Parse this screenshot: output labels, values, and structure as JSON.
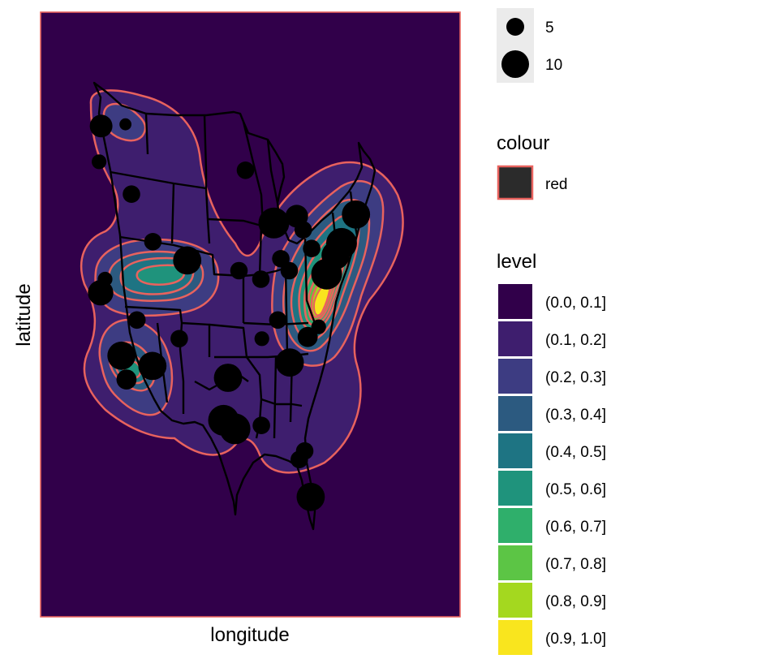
{
  "chart_data": {
    "type": "heatmap",
    "description_kind": "map_density_contour",
    "xlabel": "longitude",
    "ylabel": "latitude",
    "x_ticks": [],
    "y_ticks": [],
    "grid": false,
    "legend_placement": "right",
    "legends": {
      "size": {
        "title": "",
        "entries": [
          {
            "label": "5",
            "value": 5
          },
          {
            "label": "10",
            "value": 10
          }
        ]
      },
      "colour": {
        "title": "colour",
        "entries": [
          {
            "label": "red",
            "color": "#E8625E"
          }
        ]
      },
      "level": {
        "title": "level",
        "entries": [
          {
            "label": "(0.0, 0.1]",
            "color": "#31004A"
          },
          {
            "label": "(0.1, 0.2]",
            "color": "#3E1E6E"
          },
          {
            "label": "(0.2, 0.3]",
            "color": "#3D3C82"
          },
          {
            "label": "(0.3, 0.4]",
            "color": "#2C5A80"
          },
          {
            "label": "(0.4, 0.5]",
            "color": "#1E7483"
          },
          {
            "label": "(0.5, 0.6]",
            "color": "#1F937C"
          },
          {
            "label": "(0.6, 0.7]",
            "color": "#2FAF6B"
          },
          {
            "label": "(0.7, 0.8]",
            "color": "#5CC545"
          },
          {
            "label": "(0.8, 0.9]",
            "color": "#A4D81F"
          },
          {
            "label": "(0.9, 1.0]",
            "color": "#F9E51E"
          }
        ]
      }
    },
    "points": [
      {
        "lon": -122.3,
        "lat": 47.6,
        "size": 7
      },
      {
        "lon": -122.7,
        "lat": 45.5,
        "size": 4
      },
      {
        "lon": -116.2,
        "lat": 43.6,
        "size": 5
      },
      {
        "lon": -117.4,
        "lat": 47.7,
        "size": 3
      },
      {
        "lon": -122.4,
        "lat": 37.8,
        "size": 8
      },
      {
        "lon": -121.5,
        "lat": 38.6,
        "size": 4
      },
      {
        "lon": -118.2,
        "lat": 34.1,
        "size": 9
      },
      {
        "lon": -117.2,
        "lat": 32.7,
        "size": 6
      },
      {
        "lon": -115.1,
        "lat": 36.2,
        "size": 5
      },
      {
        "lon": -112.0,
        "lat": 33.5,
        "size": 9
      },
      {
        "lon": -111.9,
        "lat": 40.8,
        "size": 5
      },
      {
        "lon": -105.0,
        "lat": 39.7,
        "size": 9
      },
      {
        "lon": -106.6,
        "lat": 35.1,
        "size": 5
      },
      {
        "lon": -97.7,
        "lat": 30.3,
        "size": 10
      },
      {
        "lon": -96.8,
        "lat": 32.8,
        "size": 9
      },
      {
        "lon": -95.4,
        "lat": 29.8,
        "size": 10
      },
      {
        "lon": -93.3,
        "lat": 45.0,
        "size": 5
      },
      {
        "lon": -87.6,
        "lat": 41.9,
        "size": 10
      },
      {
        "lon": -90.2,
        "lat": 38.6,
        "size": 5
      },
      {
        "lon": -94.6,
        "lat": 39.1,
        "size": 5
      },
      {
        "lon": -84.4,
        "lat": 33.7,
        "size": 9
      },
      {
        "lon": -80.2,
        "lat": 25.8,
        "size": 9
      },
      {
        "lon": -82.5,
        "lat": 28.0,
        "size": 5
      },
      {
        "lon": -81.4,
        "lat": 28.5,
        "size": 5
      },
      {
        "lon": -77.0,
        "lat": 38.9,
        "size": 10
      },
      {
        "lon": -75.2,
        "lat": 40.0,
        "size": 9
      },
      {
        "lon": -74.0,
        "lat": 40.7,
        "size": 10
      },
      {
        "lon": -71.1,
        "lat": 42.4,
        "size": 9
      },
      {
        "lon": -83.0,
        "lat": 42.3,
        "size": 7
      },
      {
        "lon": -81.7,
        "lat": 41.5,
        "size": 5
      },
      {
        "lon": -80.0,
        "lat": 40.4,
        "size": 5
      },
      {
        "lon": -84.5,
        "lat": 39.1,
        "size": 5
      },
      {
        "lon": -86.2,
        "lat": 39.8,
        "size": 5
      },
      {
        "lon": -76.6,
        "lat": 39.3,
        "size": 6
      },
      {
        "lon": -78.6,
        "lat": 35.8,
        "size": 4
      },
      {
        "lon": -80.8,
        "lat": 35.2,
        "size": 6
      },
      {
        "lon": -86.8,
        "lat": 36.2,
        "size": 5
      },
      {
        "lon": -90.0,
        "lat": 35.1,
        "size": 4
      },
      {
        "lon": -90.1,
        "lat": 30.0,
        "size": 5
      }
    ]
  }
}
